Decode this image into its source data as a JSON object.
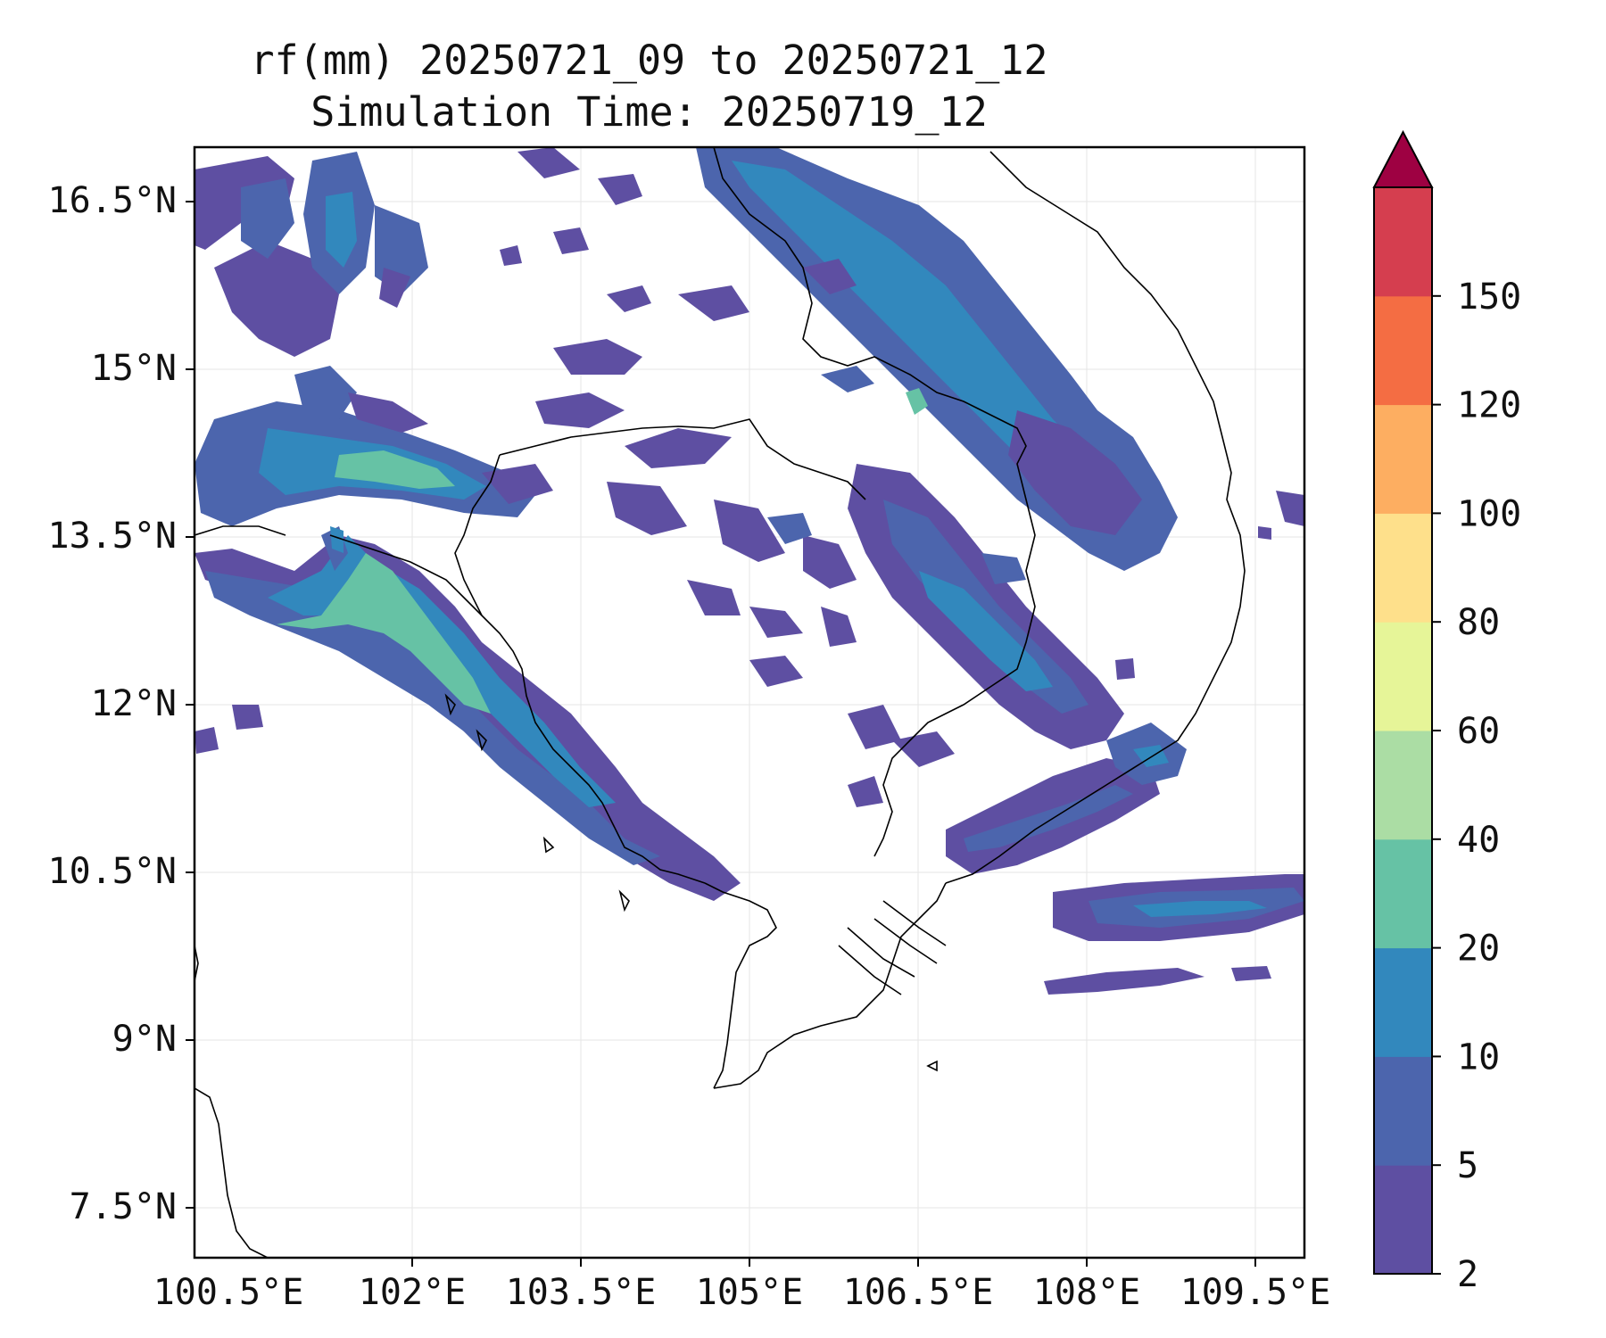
{
  "title": {
    "line1": "rf(mm) 20250721_09 to 20250721_12",
    "line2": "Simulation Time: 20250719_12"
  },
  "map": {
    "lon_range": [
      100.2,
      109.8
    ],
    "lat_range": [
      7.05,
      17.0
    ],
    "lon_ticks": [
      "100.5°E",
      "102°E",
      "103.5°E",
      "105°E",
      "106.5°E",
      "108°E",
      "109.5°E"
    ],
    "lat_ticks": [
      "16.5°N",
      "15°N",
      "13.5°N",
      "12°N",
      "10.5°N",
      "9°N",
      "7.5°N"
    ],
    "grid": true
  },
  "colorbar": {
    "levels": [
      "2",
      "5",
      "10",
      "20",
      "40",
      "60",
      "80",
      "100",
      "120",
      "150"
    ],
    "colors": [
      "#5e4fa2",
      "#4c65ad",
      "#3288bd",
      "#66c2a5",
      "#abdda4",
      "#e6f598",
      "#fee08b",
      "#fdae61",
      "#f46d43",
      "#d53e4f"
    ],
    "extend_color": "#9e0142",
    "extend": "max"
  }
}
